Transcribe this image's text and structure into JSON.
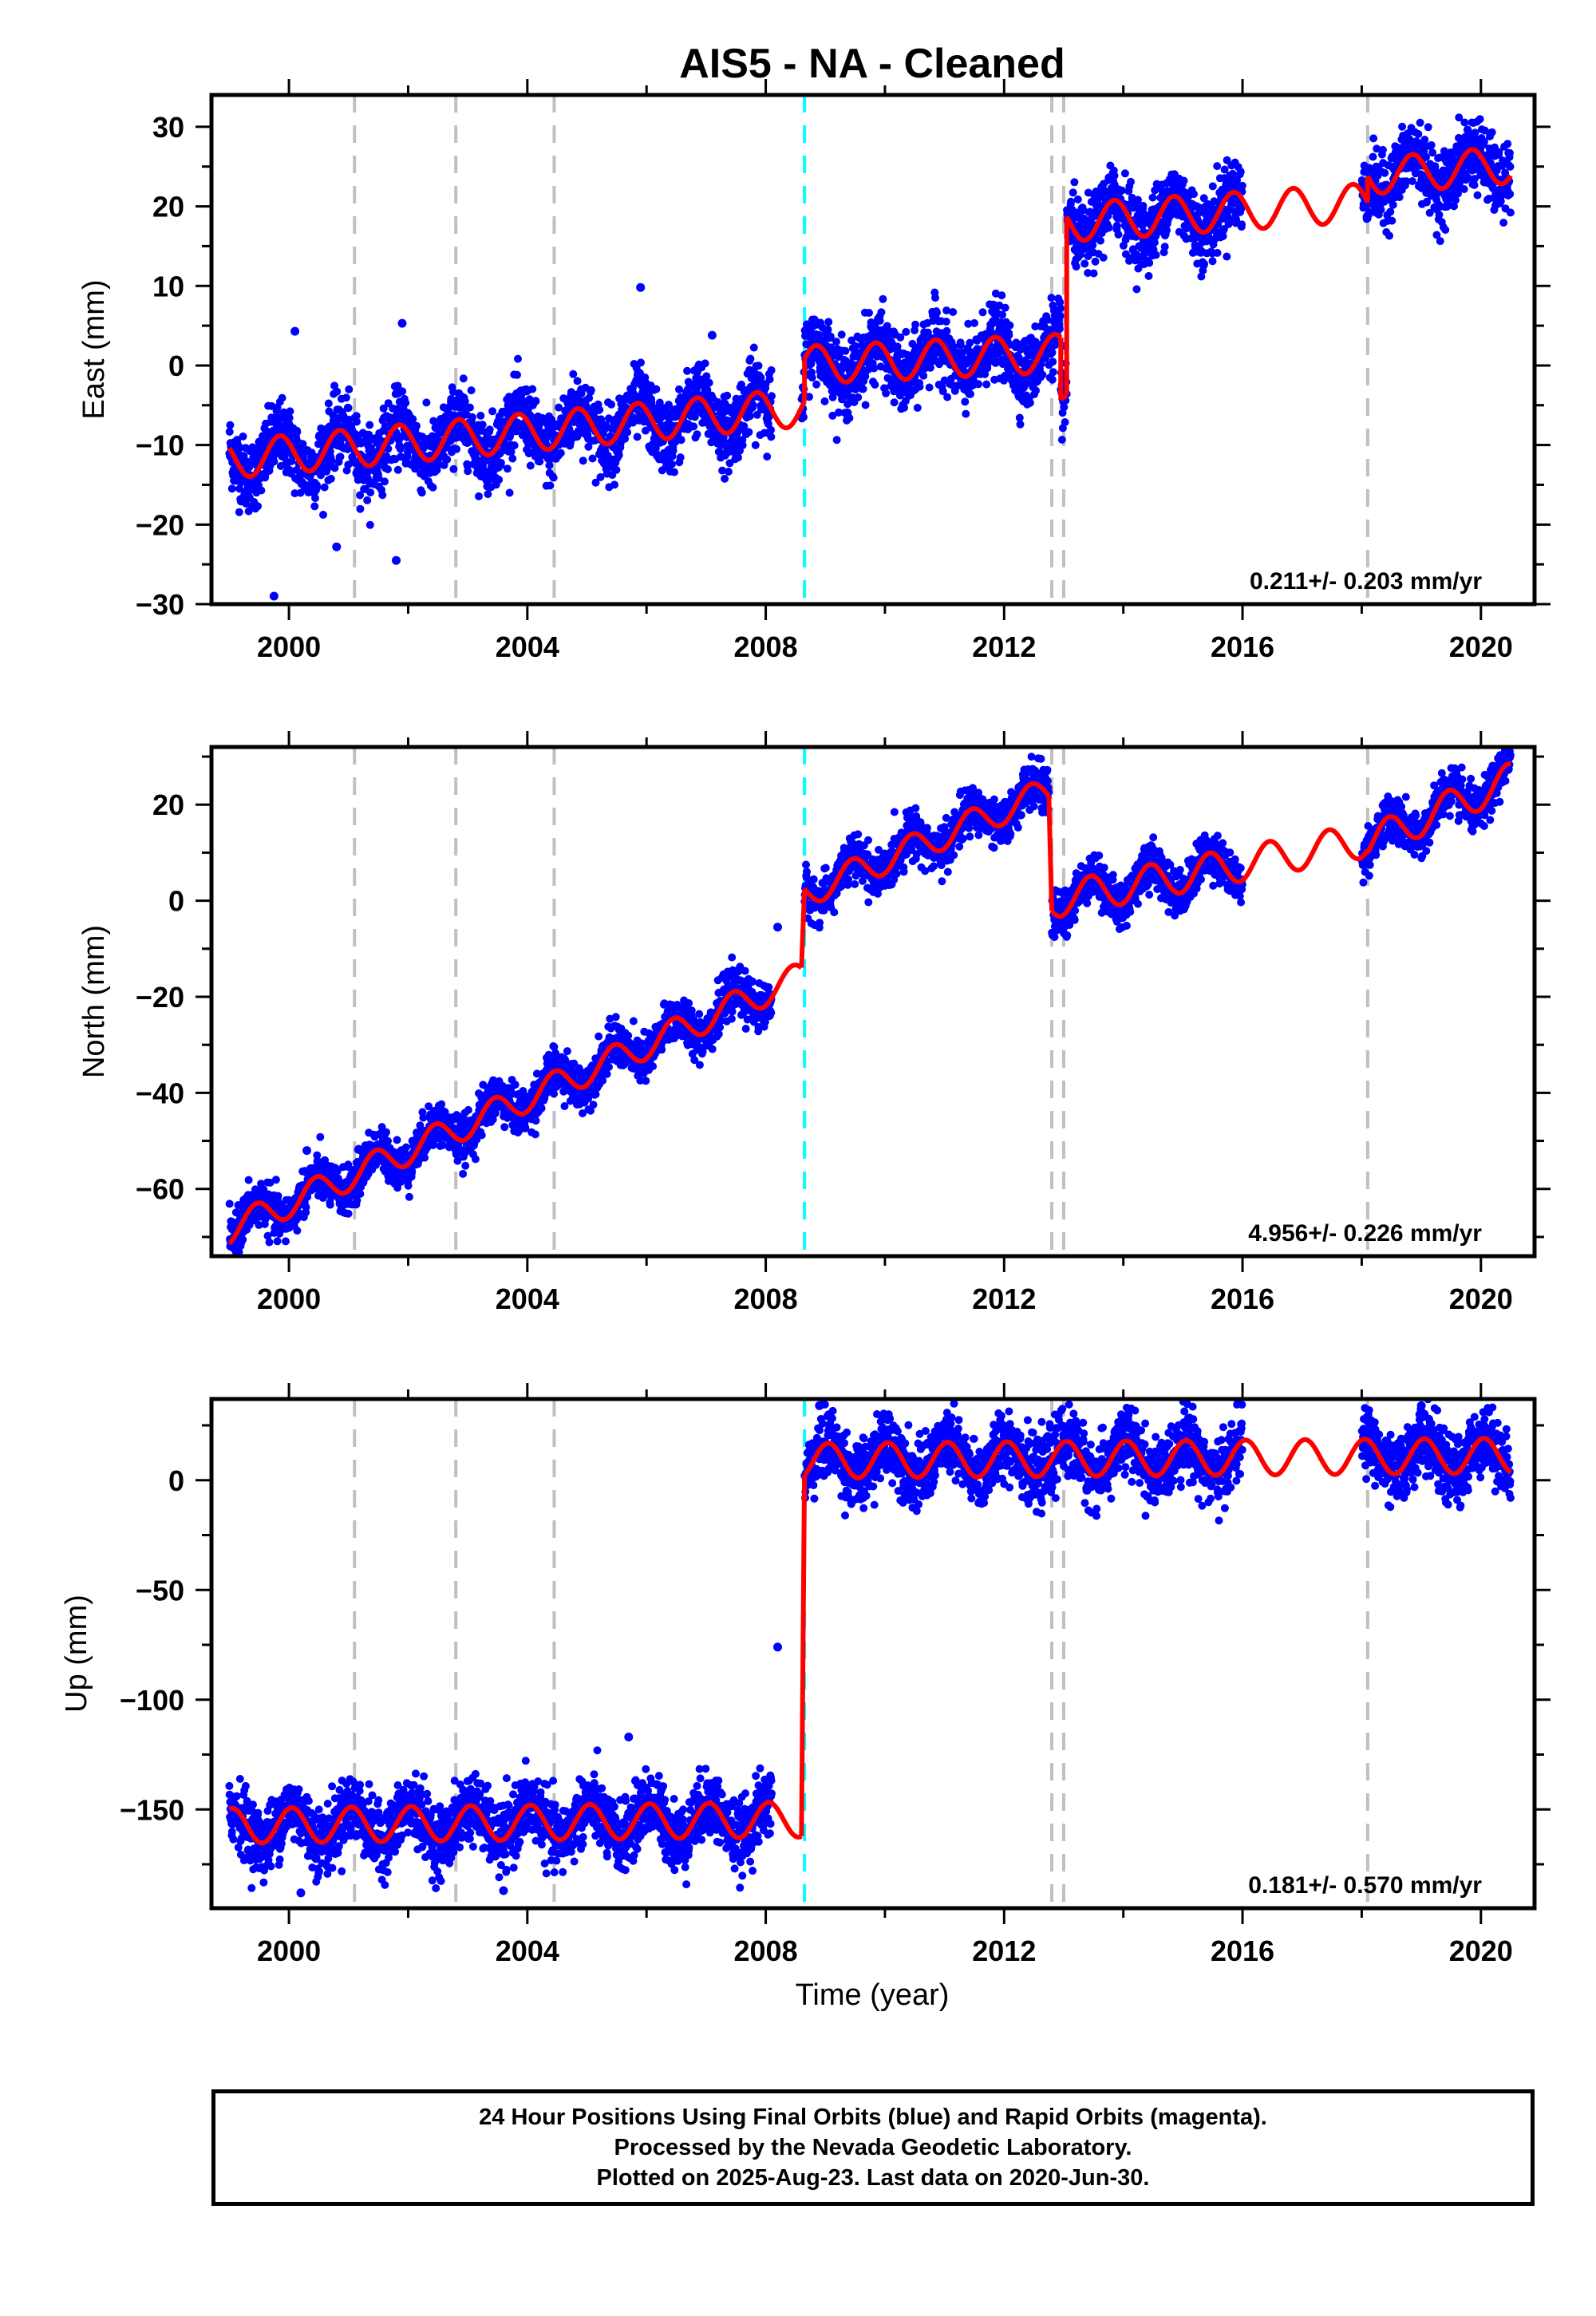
{
  "title": "AIS5  - NA - Cleaned",
  "xlabel": "Time (year)",
  "colors": {
    "data": "#0000ff",
    "model": "#ff0000",
    "offset_equipment": "#c0c0c0",
    "offset_event": "#00ffff",
    "frame": "#000000"
  },
  "chart_data": [
    {
      "type": "scatter",
      "ylabel": "East (mm)",
      "xlim": [
        1998.7,
        2020.9
      ],
      "ylim": [
        -30,
        34
      ],
      "yticks": [
        -30,
        -20,
        -10,
        0,
        10,
        20,
        30
      ],
      "yticks_minor": [
        -25,
        -15,
        -5,
        5,
        15,
        25
      ],
      "xticks": [
        2000,
        2004,
        2008,
        2012,
        2016,
        2020
      ],
      "xticks_minor": [
        2002,
        2006,
        2010,
        2014,
        2018
      ],
      "grid": false,
      "rate_text": "0.211+/- 0.203 mm/yr",
      "offsets_gray": [
        2001.1,
        2002.8,
        2004.45,
        2012.8,
        2013.0,
        2018.1
      ],
      "offsets_cyan": [
        2008.65
      ],
      "series": [
        {
          "role": "model",
          "segments": [
            {
              "x0": 1999.0,
              "x1": 2008.65,
              "a": -8.4,
              "b": 0.68,
              "c": -2.2,
              "t0": 2004.0,
              "amp": 2.4,
              "phase": -0.6
            },
            {
              "x0": 2008.65,
              "x1": 2012.95,
              "a": 0.8,
              "b": 0.35,
              "c": 0,
              "t0": 2010.8,
              "amp": 2.4,
              "phase": -0.6
            },
            {
              "x0": 2012.95,
              "x1": 2013.05,
              "a": -4.0,
              "b": 0,
              "c": 0,
              "t0": 2013.0,
              "amp": 1.0,
              "phase": 0
            },
            {
              "x0": 2013.05,
              "x1": 2018.1,
              "a": 19.2,
              "b": 0.5,
              "c": -2.5,
              "t0": 2015.5,
              "amp": 2.4,
              "phase": -0.6
            },
            {
              "x0": 2018.1,
              "x1": 2020.5,
              "a": 24.5,
              "b": 0.6,
              "c": 0,
              "t0": 2019.3,
              "amp": 2.3,
              "phase": -0.6
            }
          ],
          "step_values": [
            [
              2012.95,
              -3.5,
              18.0
            ]
          ]
        },
        {
          "role": "data",
          "noise": 2.2,
          "gaps": [
            [
              2016.0,
              2018.0
            ],
            [
              2008.1,
              2008.6
            ]
          ],
          "outliers": [
            [
              1999.75,
              -29.0
            ],
            [
              2000.1,
              4.3
            ],
            [
              2000.8,
              -22.8
            ],
            [
              2001.8,
              -24.5
            ],
            [
              2001.9,
              5.3
            ],
            [
              2003.5,
              -12.6
            ],
            [
              2005.9,
              9.8
            ],
            [
              2007.1,
              3.8
            ]
          ]
        }
      ]
    },
    {
      "type": "scatter",
      "ylabel": "North (mm)",
      "xlim": [
        1998.7,
        2020.9
      ],
      "ylim": [
        -74,
        32
      ],
      "yticks": [
        -60,
        -40,
        -20,
        0,
        20
      ],
      "yticks_minor": [
        -70,
        -50,
        -30,
        -10,
        10,
        30
      ],
      "xticks": [
        2000,
        2004,
        2008,
        2012,
        2016,
        2020
      ],
      "xticks_minor": [
        2002,
        2006,
        2010,
        2014,
        2018
      ],
      "grid": false,
      "rate_text": "4.956+/- 0.226 mm/yr",
      "offsets_gray": [
        2001.1,
        2002.8,
        2004.45,
        2012.8,
        2013.0,
        2018.1
      ],
      "offsets_cyan": [
        2008.65
      ],
      "series": [
        {
          "role": "model",
          "segments": [
            {
              "x0": 1999.0,
              "x1": 2008.6,
              "a": -68.5,
              "b": 5.5,
              "c": 0,
              "t0": 1999.0,
              "amp": 3.0,
              "phase": -0.2
            },
            {
              "x0": 2008.65,
              "x1": 2012.75,
              "a": 1.5,
              "b": 5.2,
              "c": 0,
              "t0": 2008.65,
              "amp": 3.0,
              "phase": -0.2
            },
            {
              "x0": 2012.8,
              "x1": 2018.1,
              "a": 0.0,
              "b": 2.4,
              "c": 0,
              "t0": 2012.8,
              "amp": 3.6,
              "phase": -0.2
            },
            {
              "x0": 2018.1,
              "x1": 2020.5,
              "a": 12.0,
              "b": 5.5,
              "c": 0,
              "t0": 2018.1,
              "amp": 3.5,
              "phase": -0.2
            }
          ]
        },
        {
          "role": "data",
          "noise": 2.3,
          "gaps": [
            [
              2016.0,
              2018.0
            ],
            [
              2008.1,
              2008.6
            ]
          ],
          "outliers": [
            [
              2008.2,
              -5.5
            ],
            [
              2000.3,
              -52.0
            ],
            [
              2003.3,
              -40.5
            ]
          ]
        }
      ]
    },
    {
      "type": "scatter",
      "ylabel": "Up (mm)",
      "xlim": [
        1998.7,
        2020.9
      ],
      "ylim": [
        -195,
        37
      ],
      "yticks": [
        -150,
        -100,
        -50,
        0
      ],
      "yticks_minor": [
        -175,
        -125,
        -75,
        -25,
        25
      ],
      "xticks": [
        2000,
        2004,
        2008,
        2012,
        2016,
        2020
      ],
      "xticks_minor": [
        2002,
        2006,
        2010,
        2014,
        2018
      ],
      "grid": false,
      "rate_text": "0.181+/- 0.570 mm/yr",
      "offsets_gray": [
        2001.1,
        2002.8,
        2004.45,
        2012.8,
        2013.0,
        2018.1
      ],
      "offsets_cyan": [
        2008.65
      ],
      "series": [
        {
          "role": "model",
          "segments": [
            {
              "x0": 1999.0,
              "x1": 2008.6,
              "a": -156.0,
              "b": 0.3,
              "c": 0,
              "t0": 2004.0,
              "amp": 8.0,
              "phase": 0.2
            },
            {
              "x0": 2008.65,
              "x1": 2020.5,
              "a": 10.0,
              "b": 0.2,
              "c": 0,
              "t0": 2014.5,
              "amp": 8.0,
              "phase": 0.2
            }
          ]
        },
        {
          "role": "data",
          "noise": 7.5,
          "gaps": [
            [
              2016.0,
              2018.0
            ],
            [
              2008.1,
              2008.6
            ]
          ],
          "outliers": [
            [
              2008.2,
              -76.0
            ],
            [
              2000.2,
              -188.0
            ],
            [
              2003.6,
              -187.0
            ],
            [
              2005.7,
              -117.0
            ],
            [
              2019.0,
              34.0
            ],
            [
              2008.9,
              34.0
            ]
          ]
        }
      ]
    }
  ],
  "footer": {
    "line1": "24 Hour Positions Using Final Orbits (blue) and Rapid Orbits (magenta).",
    "line2": "Processed by the Nevada Geodetic Laboratory.",
    "line3": "Plotted on 2025-Aug-23. Last data on 2020-Jun-30."
  }
}
